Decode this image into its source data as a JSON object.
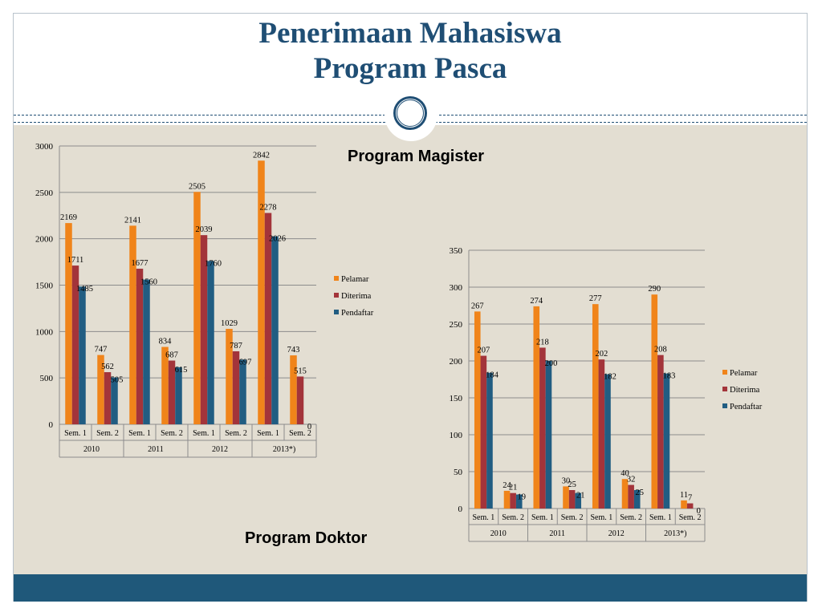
{
  "slide": {
    "title_line1": "Penerimaan Mahasiswa",
    "title_line2": "Program Pasca"
  },
  "chart_data": [
    {
      "type": "bar",
      "title": "Program Magister",
      "ylim": [
        0,
        3000
      ],
      "yticks": [
        "0",
        "500",
        "1000",
        "1500",
        "2000",
        "2500",
        "3000"
      ],
      "categories": [
        "Sem. 1",
        "Sem. 2",
        "Sem. 1",
        "Sem. 2",
        "Sem. 1",
        "Sem. 2",
        "Sem. 1",
        "Sem. 2"
      ],
      "groups": [
        "2010",
        "2011",
        "2012",
        "2013*)"
      ],
      "series": [
        {
          "name": "Pelamar",
          "color": "#f0841a",
          "values": [
            2169,
            747,
            2141,
            834,
            2505,
            1029,
            2842,
            743
          ]
        },
        {
          "name": "Diterima",
          "color": "#a3343a",
          "values": [
            1711,
            562,
            1677,
            687,
            2039,
            787,
            2278,
            515
          ]
        },
        {
          "name": "Pendaftar",
          "color": "#215d82",
          "values": [
            1485,
            505,
            1560,
            615,
            1760,
            697,
            2026,
            0
          ]
        }
      ],
      "legend_position": "right",
      "grid": true
    },
    {
      "type": "bar",
      "title": "Program Doktor",
      "ylim": [
        0,
        350
      ],
      "yticks": [
        "0",
        "50",
        "100",
        "150",
        "200",
        "250",
        "300",
        "350"
      ],
      "categories": [
        "Sem. 1",
        "Sem. 2",
        "Sem. 1",
        "Sem. 2",
        "Sem. 1",
        "Sem. 2",
        "Sem. 1",
        "Sem. 2"
      ],
      "groups": [
        "2010",
        "2011",
        "2012",
        "2013*)"
      ],
      "series": [
        {
          "name": "Pelamar",
          "color": "#f0841a",
          "values": [
            267,
            24,
            274,
            30,
            277,
            40,
            290,
            11
          ]
        },
        {
          "name": "Diterima",
          "color": "#a3343a",
          "values": [
            207,
            21,
            218,
            25,
            202,
            32,
            208,
            7
          ]
        },
        {
          "name": "Pendaftar",
          "color": "#215d82",
          "values": [
            184,
            19,
            200,
            21,
            182,
            25,
            183,
            0
          ]
        }
      ],
      "legend_position": "right",
      "grid": true
    }
  ]
}
